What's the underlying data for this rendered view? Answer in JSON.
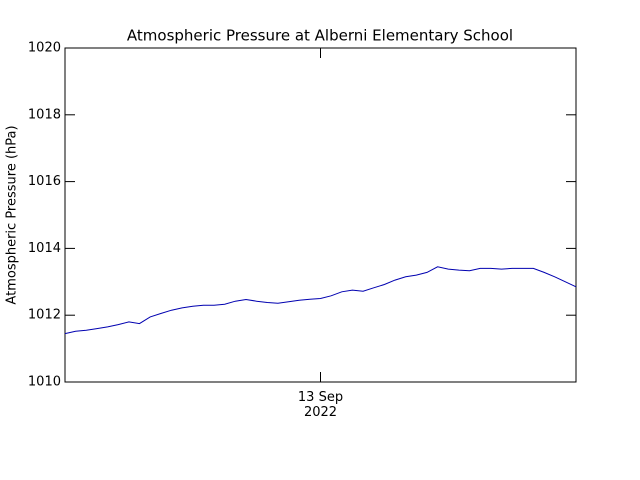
{
  "chart_data": {
    "type": "line",
    "title": "Atmospheric Pressure at Alberni Elementary School",
    "ylabel": "Atmospheric Pressure (hPa)",
    "categories": [
      null,
      null,
      null,
      null,
      null,
      null,
      null,
      null,
      null,
      null,
      null,
      null,
      null,
      null,
      null,
      null,
      null,
      null,
      null,
      null,
      null,
      null,
      null,
      null,
      "13 Sep\n2022",
      null,
      null,
      null,
      null,
      null,
      null,
      null,
      null,
      null,
      null,
      null,
      null,
      null,
      null,
      null,
      null,
      null,
      null,
      null,
      null,
      null,
      null,
      null,
      null
    ],
    "series": [
      {
        "color": "#0000b0",
        "values": [
          1011.45,
          1011.52,
          1011.55,
          1011.6,
          1011.65,
          1011.72,
          1011.8,
          1011.75,
          1011.95,
          1012.05,
          1012.15,
          1012.22,
          1012.27,
          1012.3,
          1012.3,
          1012.33,
          1012.42,
          1012.47,
          1012.42,
          1012.38,
          1012.36,
          1012.4,
          1012.45,
          1012.48,
          1012.5,
          1012.58,
          1012.7,
          1012.75,
          1012.72,
          1012.82,
          1012.92,
          1013.05,
          1013.15,
          1013.2,
          1013.28,
          1013.45,
          1013.38,
          1013.35,
          1013.33,
          1013.4,
          1013.4,
          1013.38,
          1013.4,
          1013.4,
          1013.4,
          1013.28,
          1013.15,
          1013.0,
          1012.85
        ]
      }
    ],
    "ylim": [
      1010,
      1020
    ],
    "yticks": [
      1010,
      1012,
      1014,
      1016,
      1018,
      1020
    ]
  }
}
